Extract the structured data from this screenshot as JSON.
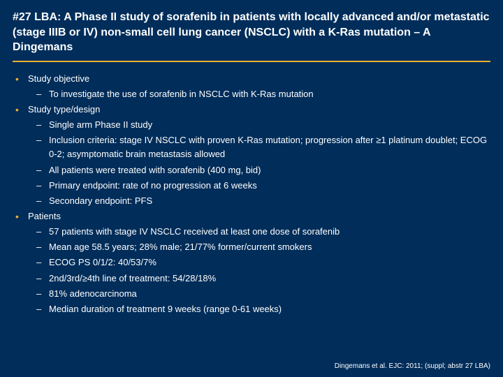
{
  "colors": {
    "background": "#002d5a",
    "accent": "#f0b030",
    "text": "#ffffff"
  },
  "title": "#27 LBA: A Phase II study of sorafenib in patients with locally advanced and/or metastatic (stage IIIB or IV) non-small cell lung cancer (NSCLC) with a K-Ras mutation – A Dingemans",
  "sections": [
    {
      "heading": "Study objective",
      "items": [
        "To investigate the use of sorafenib in NSCLC with K-Ras mutation"
      ]
    },
    {
      "heading": "Study type/design",
      "items": [
        "Single arm Phase II study",
        "Inclusion criteria: stage IV NSCLC with proven K-Ras mutation; progression after ≥1 platinum doublet; ECOG 0-2; asymptomatic brain metastasis allowed",
        "All patients were treated with sorafenib (400 mg, bid)",
        "Primary endpoint: rate of no progression at 6 weeks",
        "Secondary endpoint: PFS"
      ]
    },
    {
      "heading": "Patients",
      "items": [
        "57 patients with stage IV NSCLC received at least one dose of sorafenib",
        "Mean age 58.5 years; 28% male; 21/77% former/current smokers",
        "ECOG PS 0/1/2: 40/53/7%",
        "2nd/3rd/≥4th line of treatment: 54/28/18%",
        "81% adenocarcinoma",
        "Median duration of treatment 9 weeks (range 0-61 weeks)"
      ]
    }
  ],
  "citation": "Dingemans et al. EJC: 2011; (suppl; abstr 27 LBA)"
}
